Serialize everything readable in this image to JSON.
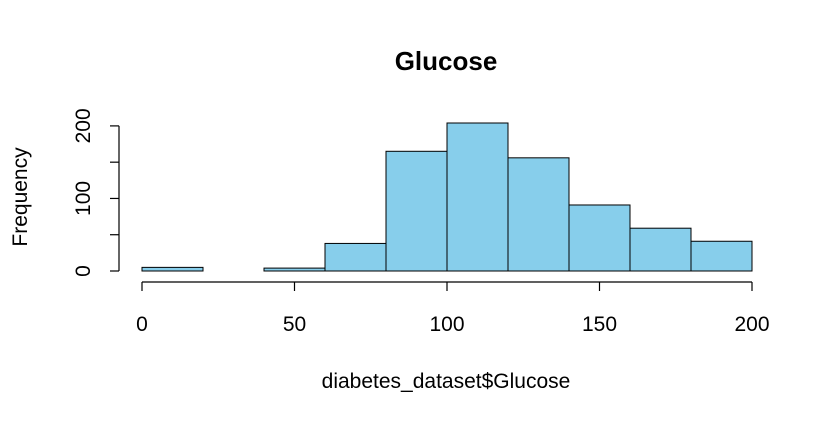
{
  "chart_data": {
    "type": "bar",
    "title": "Glucose",
    "xlabel": "diabetes_dataset$Glucose",
    "ylabel": "Frequency",
    "bin_edges": [
      0,
      20,
      40,
      60,
      80,
      100,
      120,
      140,
      160,
      180,
      200
    ],
    "values": [
      5,
      0,
      4,
      38,
      165,
      204,
      156,
      91,
      59,
      41
    ],
    "xlim": [
      0,
      200
    ],
    "ylim": [
      0,
      204
    ],
    "x_ticks": [
      0,
      50,
      100,
      150,
      200
    ],
    "y_ticks": [
      0,
      50,
      100,
      150,
      200
    ],
    "y_tick_labels": [
      "0",
      "",
      "100",
      "",
      "200"
    ],
    "bar_color": "#87ceeb",
    "grid": false
  }
}
